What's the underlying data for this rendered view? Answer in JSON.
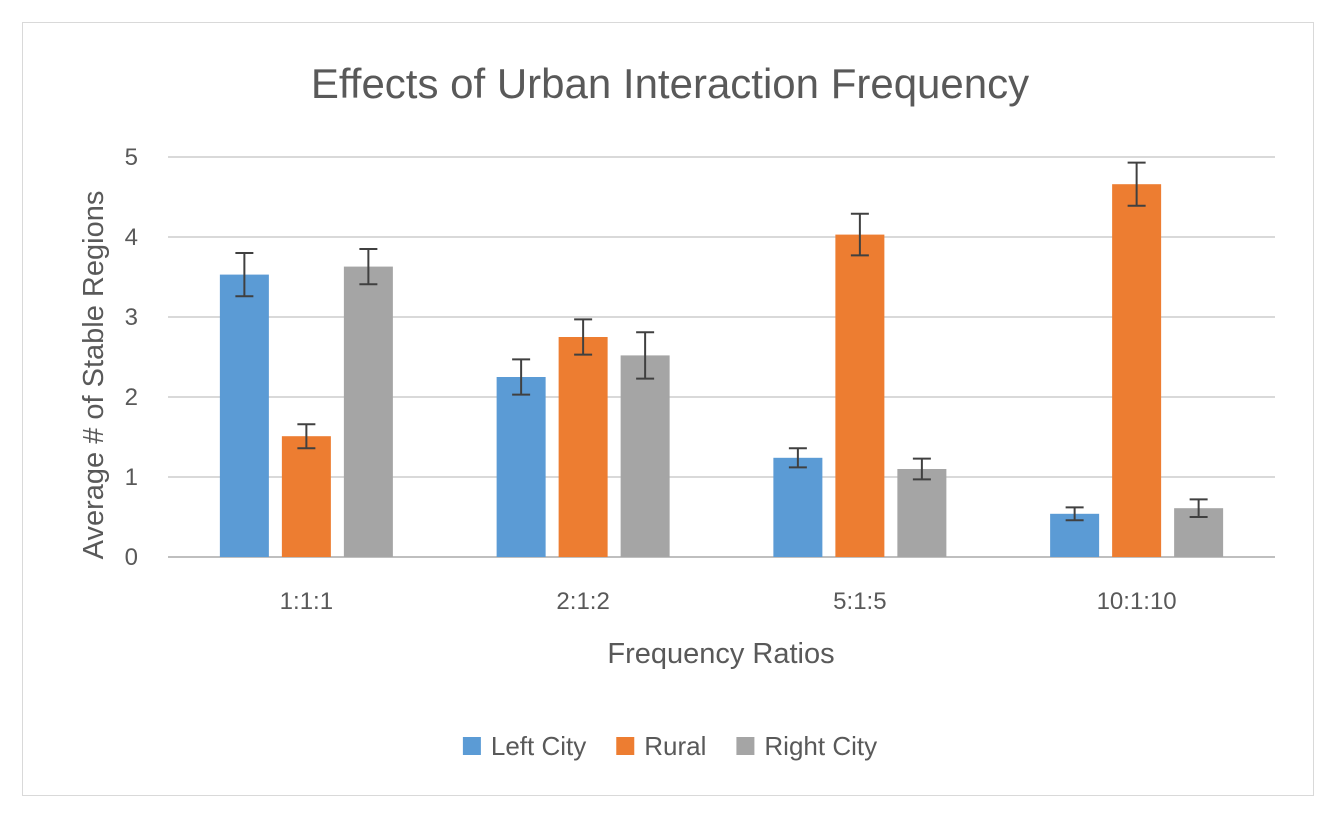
{
  "chart_data": {
    "type": "bar",
    "title": "Effects of Urban Interaction Frequency",
    "xlabel": "Frequency Ratios",
    "ylabel": "Average # of Stable Regions",
    "categories": [
      "1:1:1",
      "2:1:2",
      "5:1:5",
      "10:1:10"
    ],
    "ylim": [
      0,
      5
    ],
    "yticks": [
      0,
      1,
      2,
      3,
      4,
      5
    ],
    "grid": true,
    "legend_position": "bottom",
    "series": [
      {
        "name": "Left City",
        "color": "#5b9bd5",
        "values": [
          3.53,
          2.25,
          1.24,
          0.54
        ],
        "error": [
          0.27,
          0.22,
          0.12,
          0.08
        ]
      },
      {
        "name": "Rural",
        "color": "#ed7d31",
        "values": [
          1.51,
          2.75,
          4.03,
          4.66
        ],
        "error": [
          0.15,
          0.22,
          0.26,
          0.27
        ]
      },
      {
        "name": "Right City",
        "color": "#a5a5a5",
        "values": [
          3.63,
          2.52,
          1.1,
          0.61
        ],
        "error": [
          0.22,
          0.29,
          0.13,
          0.11
        ]
      }
    ]
  }
}
